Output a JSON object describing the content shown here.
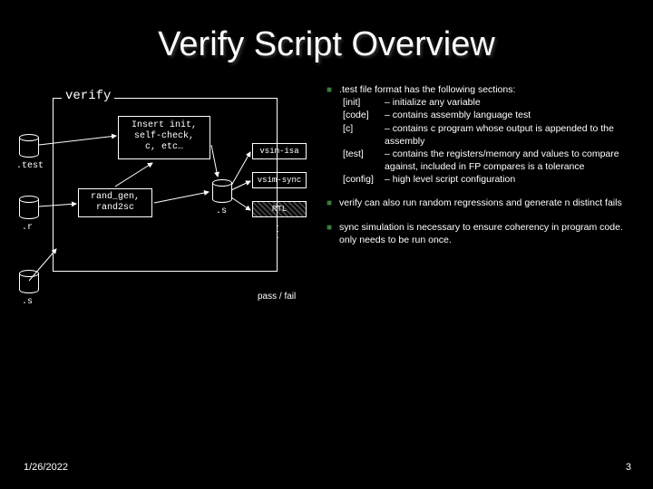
{
  "title": "Verify Script Overview",
  "diagram": {
    "verify_label": "verify",
    "insert_box": "Insert init,\nself-check,\nc, etc…",
    "rand_box": "rand_gen,\nrand2sc",
    "cyl_test": ".test",
    "cyl_r": ".r",
    "cyl_s_outer": ".s",
    "cyl_s_inner": ".s",
    "flow_isa": "vsim-isa",
    "flow_sync": "vsim-sync",
    "flow_rtl": "RTL",
    "passfail": "pass / fail"
  },
  "bullets": [
    {
      "lead": ".test file format has the following sections:",
      "sections": [
        {
          "tag": "[init]",
          "desc": "– initialize any variable"
        },
        {
          "tag": "[code]",
          "desc": "– contains assembly language test"
        },
        {
          "tag": "[c]",
          "desc": "– contains c program whose output is appended to the assembly"
        },
        {
          "tag": "[test]",
          "desc": "– contains the registers/memory and values to compare against, included in FP compares is a tolerance"
        },
        {
          "tag": "[config]",
          "desc": "– high level script configuration"
        }
      ]
    },
    {
      "lead": "verify can also run random regressions and generate n distinct fails"
    },
    {
      "lead": "sync simulation is necessary to ensure coherency in program code. only needs to be run once."
    }
  ],
  "footer": {
    "date": "1/26/2022",
    "page": "3"
  },
  "colors": {
    "bg": "#000000",
    "fg": "#ffffff",
    "bullet": "#3a7a3a"
  }
}
